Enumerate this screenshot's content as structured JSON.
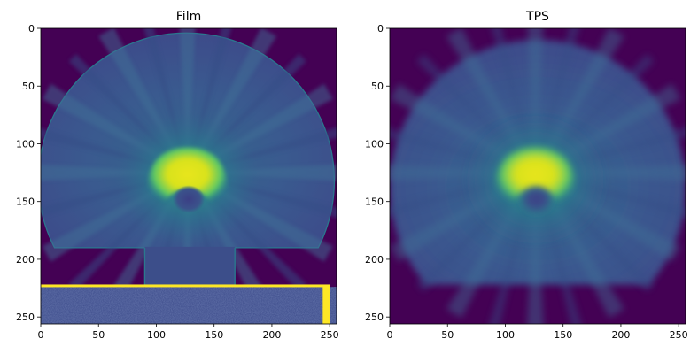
{
  "figure": {
    "background": "#ffffff"
  },
  "chart_data": [
    {
      "type": "heatmap",
      "title": "Film",
      "colormap": "viridis",
      "xlabel": "",
      "ylabel": "",
      "xlim": [
        0,
        256
      ],
      "ylim": [
        256,
        0
      ],
      "x_ticks": [
        0,
        50,
        100,
        150,
        200,
        250
      ],
      "y_ticks": [
        0,
        50,
        100,
        150,
        200,
        250
      ],
      "background_color": "#440154",
      "features": {
        "dose_region": {
          "center_x": 126,
          "center_y": 132,
          "radius": 128,
          "flat_bottom_y": 190
        },
        "hotspot": {
          "center_x": 127,
          "center_y": 125,
          "color": "#e6e41c"
        },
        "hotspot_cold_core": {
          "center_x": 128,
          "center_y": 148
        },
        "neck_notch": {
          "x_from": 90,
          "x_to": 168,
          "y_from": 190,
          "y_to": 223
        },
        "film_edge_line": {
          "y": 223,
          "x_from": 0,
          "x_to": 250,
          "color": "#fde725"
        },
        "right_edge_bar": {
          "x_from": 244,
          "x_to": 250,
          "y_from": 223,
          "y_to": 256,
          "color": "#fde725"
        },
        "noise_band": {
          "y_from": 224,
          "y_to": 256,
          "color": "#3b4a8a"
        }
      }
    },
    {
      "type": "heatmap",
      "title": "TPS",
      "colormap": "viridis",
      "xlabel": "",
      "ylabel": "",
      "xlim": [
        0,
        256
      ],
      "ylim": [
        256,
        0
      ],
      "x_ticks": [
        0,
        50,
        100,
        150,
        200,
        250
      ],
      "y_ticks": [
        0,
        50,
        100,
        150,
        200,
        250
      ],
      "background_color": "#440154",
      "features": {
        "dose_region": {
          "center_x": 128,
          "center_y": 138,
          "radius": 128,
          "flat_bottom_y": 222
        },
        "hotspot": {
          "center_x": 126,
          "center_y": 125,
          "color": "#dfe318"
        },
        "hotspot_cold_core": {
          "center_x": 127,
          "center_y": 148
        }
      }
    }
  ]
}
